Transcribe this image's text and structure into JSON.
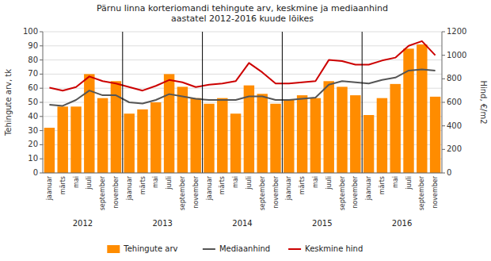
{
  "chart_data": {
    "type": "bar",
    "title": "Pärnu linna korteriomandi tehingute arv, keskmine ja mediaanhind\naastatel 2012-2016 kuude lõikes",
    "ylabel": "Tehingute arv, tk",
    "y2label": "Hind, €/m2",
    "categories": [
      "jaanuar",
      "märts",
      "mai",
      "juuli",
      "september",
      "november",
      "jaanuar",
      "märts",
      "mai",
      "juuli",
      "september",
      "november",
      "jaanuar",
      "märts",
      "mai",
      "juuli",
      "september",
      "november",
      "jaanuar",
      "märts",
      "mai",
      "juuli",
      "september",
      "november",
      "jaanuar",
      "märts",
      "mai",
      "juuli",
      "september",
      "november"
    ],
    "annotations": [
      "2012",
      "2013",
      "2014",
      "2015",
      "2016"
    ],
    "series": [
      {
        "name": "Tehingute arv",
        "type": "bar",
        "color": "#FF8C00",
        "values": [
          32,
          47,
          47,
          70,
          53,
          65,
          42,
          45,
          50,
          70,
          61,
          53,
          49,
          53,
          42,
          62,
          56,
          49,
          52,
          55,
          53,
          65,
          61,
          55,
          41,
          53,
          63,
          88,
          91,
          54
        ]
      },
      {
        "name": "Mediaanhind",
        "type": "line",
        "axis": "y2",
        "color": "#555555",
        "values": [
          580,
          570,
          620,
          700,
          660,
          660,
          600,
          590,
          620,
          670,
          650,
          630,
          620,
          620,
          620,
          650,
          650,
          620,
          620,
          630,
          640,
          750,
          780,
          770,
          760,
          790,
          810,
          870,
          880,
          870
        ]
      },
      {
        "name": "Keskmine hind",
        "type": "line",
        "axis": "y2",
        "color": "#CC0000",
        "values": [
          725,
          700,
          730,
          820,
          780,
          760,
          730,
          700,
          740,
          790,
          770,
          730,
          750,
          760,
          780,
          935,
          855,
          760,
          760,
          770,
          780,
          960,
          950,
          920,
          920,
          955,
          980,
          1080,
          1120,
          1000
        ]
      }
    ],
    "ylim": [
      0,
      100
    ],
    "yticks": [
      0,
      10,
      20,
      30,
      40,
      50,
      60,
      70,
      80,
      90,
      100
    ],
    "y2lim": [
      0,
      1200
    ],
    "y2ticks": [
      0,
      200,
      400,
      600,
      800,
      1000,
      1200
    ],
    "grid": true,
    "legend": "bottom"
  }
}
